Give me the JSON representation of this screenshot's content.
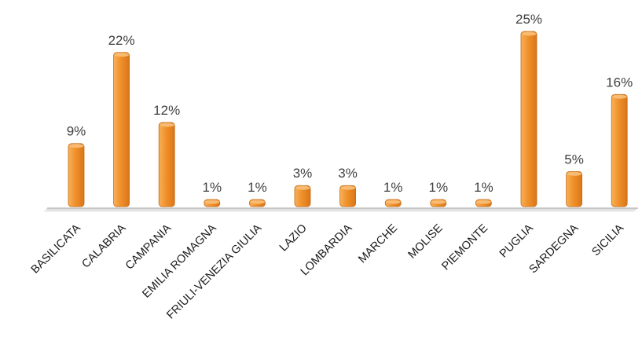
{
  "chart_data": {
    "type": "bar",
    "categories": [
      "BASILICATA",
      "CALABRIA",
      "CAMPANIA",
      "EMILIA ROMAGNA",
      "FRIULI-VENEZIA GIULIA",
      "LAZIO",
      "LOMBARDIA",
      "MARCHE",
      "MOLISE",
      "PIEMONTE",
      "PUGLIA",
      "SARDEGNA",
      "SICILIA"
    ],
    "values": [
      9,
      22,
      12,
      1,
      1,
      3,
      3,
      1,
      1,
      1,
      25,
      5,
      16
    ],
    "data_labels": [
      "9%",
      "22%",
      "12%",
      "1%",
      "1%",
      "3%",
      "3%",
      "1%",
      "1%",
      "1%",
      "25%",
      "5%",
      "16%"
    ],
    "value_unit": "%",
    "title": "",
    "xlabel": "",
    "ylabel": "",
    "ylim": [
      0,
      25
    ],
    "grid": false,
    "legend": "none",
    "bar_color": "#f0902a",
    "bar_edge_color": "#c46a12",
    "axis_color": "#bfbfbf"
  }
}
